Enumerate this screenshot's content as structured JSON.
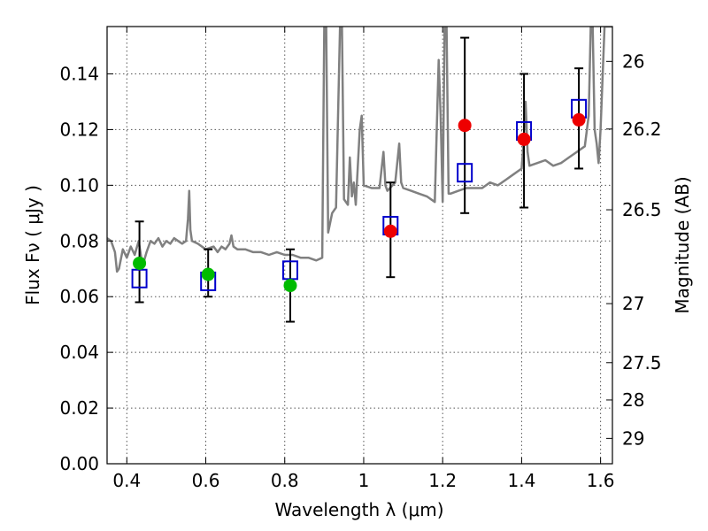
{
  "chart_data": {
    "type": "scatter",
    "title": "",
    "xlabel": "Wavelength  λ (μm)",
    "ylabel": "Flux  Fν  ( μJy )",
    "y2label": "Magnitude (AB)",
    "xlim": [
      0.35,
      1.63
    ],
    "ylim": [
      0.0,
      0.157
    ],
    "grid": true,
    "x_ticks": [
      0.4,
      0.6,
      0.8,
      1.0,
      1.2,
      1.4,
      1.6
    ],
    "x_tick_labels": [
      "0.4",
      "0.6",
      "0.8",
      "1",
      "1.2",
      "1.4",
      "1.6"
    ],
    "y_ticks": [
      0.0,
      0.02,
      0.04,
      0.06,
      0.08,
      0.1,
      0.12,
      0.14
    ],
    "y_tick_labels": [
      "0.00",
      "0.02",
      "0.04",
      "0.06",
      "0.08",
      "0.10",
      "0.12",
      "0.14"
    ],
    "y2_ticks": [
      {
        "label": "26",
        "flux": 0.1445
      },
      {
        "label": "26.2",
        "flux": 0.1202
      },
      {
        "label": "26.5",
        "flux": 0.0912
      },
      {
        "label": "27",
        "flux": 0.0575
      },
      {
        "label": "27.5",
        "flux": 0.0363
      },
      {
        "label": "28",
        "flux": 0.0229
      },
      {
        "label": "29",
        "flux": 0.0091
      }
    ],
    "series": [
      {
        "type": "line",
        "color": "#808080",
        "points": [
          [
            0.35,
            0.081
          ],
          [
            0.36,
            0.08
          ],
          [
            0.37,
            0.076
          ],
          [
            0.375,
            0.069
          ],
          [
            0.38,
            0.07
          ],
          [
            0.39,
            0.077
          ],
          [
            0.4,
            0.074
          ],
          [
            0.41,
            0.078
          ],
          [
            0.42,
            0.075
          ],
          [
            0.43,
            0.08
          ],
          [
            0.44,
            0.071
          ],
          [
            0.45,
            0.076
          ],
          [
            0.46,
            0.08
          ],
          [
            0.47,
            0.079
          ],
          [
            0.48,
            0.081
          ],
          [
            0.49,
            0.078
          ],
          [
            0.5,
            0.08
          ],
          [
            0.51,
            0.079
          ],
          [
            0.52,
            0.081
          ],
          [
            0.53,
            0.08
          ],
          [
            0.54,
            0.079
          ],
          [
            0.55,
            0.08
          ],
          [
            0.555,
            0.088
          ],
          [
            0.558,
            0.098
          ],
          [
            0.561,
            0.084
          ],
          [
            0.565,
            0.08
          ],
          [
            0.58,
            0.079
          ],
          [
            0.6,
            0.077
          ],
          [
            0.62,
            0.078
          ],
          [
            0.63,
            0.076
          ],
          [
            0.64,
            0.078
          ],
          [
            0.65,
            0.077
          ],
          [
            0.66,
            0.079
          ],
          [
            0.665,
            0.082
          ],
          [
            0.67,
            0.078
          ],
          [
            0.68,
            0.077
          ],
          [
            0.7,
            0.077
          ],
          [
            0.72,
            0.076
          ],
          [
            0.74,
            0.076
          ],
          [
            0.76,
            0.075
          ],
          [
            0.78,
            0.076
          ],
          [
            0.8,
            0.075
          ],
          [
            0.82,
            0.075
          ],
          [
            0.84,
            0.074
          ],
          [
            0.86,
            0.074
          ],
          [
            0.88,
            0.073
          ],
          [
            0.895,
            0.074
          ],
          [
            0.9,
            0.157
          ],
          [
            0.905,
            0.157
          ],
          [
            0.91,
            0.083
          ],
          [
            0.92,
            0.09
          ],
          [
            0.93,
            0.092
          ],
          [
            0.94,
            0.157
          ],
          [
            0.945,
            0.157
          ],
          [
            0.95,
            0.095
          ],
          [
            0.96,
            0.093
          ],
          [
            0.965,
            0.11
          ],
          [
            0.97,
            0.096
          ],
          [
            0.975,
            0.101
          ],
          [
            0.98,
            0.093
          ],
          [
            0.99,
            0.12
          ],
          [
            0.995,
            0.125
          ],
          [
            1.0,
            0.1
          ],
          [
            1.02,
            0.099
          ],
          [
            1.04,
            0.099
          ],
          [
            1.05,
            0.112
          ],
          [
            1.055,
            0.1
          ],
          [
            1.06,
            0.098
          ],
          [
            1.08,
            0.101
          ],
          [
            1.09,
            0.115
          ],
          [
            1.095,
            0.101
          ],
          [
            1.1,
            0.099
          ],
          [
            1.12,
            0.098
          ],
          [
            1.14,
            0.097
          ],
          [
            1.16,
            0.096
          ],
          [
            1.18,
            0.094
          ],
          [
            1.185,
            0.12
          ],
          [
            1.19,
            0.145
          ],
          [
            1.195,
            0.125
          ],
          [
            1.2,
            0.094
          ],
          [
            1.205,
            0.157
          ],
          [
            1.21,
            0.157
          ],
          [
            1.215,
            0.097
          ],
          [
            1.22,
            0.097
          ],
          [
            1.24,
            0.098
          ],
          [
            1.26,
            0.099
          ],
          [
            1.28,
            0.099
          ],
          [
            1.3,
            0.099
          ],
          [
            1.32,
            0.101
          ],
          [
            1.34,
            0.1
          ],
          [
            1.36,
            0.102
          ],
          [
            1.38,
            0.104
          ],
          [
            1.4,
            0.106
          ],
          [
            1.405,
            0.115
          ],
          [
            1.41,
            0.13
          ],
          [
            1.415,
            0.112
          ],
          [
            1.42,
            0.107
          ],
          [
            1.44,
            0.108
          ],
          [
            1.46,
            0.109
          ],
          [
            1.48,
            0.107
          ],
          [
            1.5,
            0.108
          ],
          [
            1.52,
            0.11
          ],
          [
            1.54,
            0.112
          ],
          [
            1.56,
            0.114
          ],
          [
            1.57,
            0.125
          ],
          [
            1.575,
            0.157
          ],
          [
            1.58,
            0.157
          ],
          [
            1.585,
            0.12
          ],
          [
            1.59,
            0.115
          ],
          [
            1.595,
            0.108
          ],
          [
            1.6,
            0.12
          ],
          [
            1.61,
            0.157
          ],
          [
            1.63,
            0.157
          ]
        ]
      },
      {
        "type": "errorbar",
        "color": "#000000",
        "points": [
          {
            "x": 0.432,
            "low": 0.058,
            "high": 0.087
          },
          {
            "x": 0.606,
            "low": 0.06,
            "high": 0.077
          },
          {
            "x": 0.814,
            "low": 0.051,
            "high": 0.077
          },
          {
            "x": 1.068,
            "low": 0.067,
            "high": 0.101
          },
          {
            "x": 1.256,
            "low": 0.09,
            "high": 0.153
          },
          {
            "x": 1.406,
            "low": 0.092,
            "high": 0.14
          },
          {
            "x": 1.545,
            "low": 0.106,
            "high": 0.142
          }
        ]
      },
      {
        "type": "marker",
        "marker": "square",
        "color": "#0000cc",
        "x": [
          0.432,
          0.606,
          0.814,
          1.068,
          1.256,
          1.406,
          1.545
        ],
        "y": [
          0.0665,
          0.0655,
          0.0695,
          0.0855,
          0.1045,
          0.1195,
          0.1275
        ]
      },
      {
        "type": "marker",
        "marker": "circle",
        "color": "#00bb00",
        "x": [
          0.432,
          0.606,
          0.814
        ],
        "y": [
          0.072,
          0.068,
          0.064
        ]
      },
      {
        "type": "marker",
        "marker": "circle",
        "color": "#ee0000",
        "x": [
          1.068,
          1.256,
          1.406,
          1.545
        ],
        "y": [
          0.0835,
          0.1215,
          0.1165,
          0.1235
        ]
      }
    ]
  }
}
